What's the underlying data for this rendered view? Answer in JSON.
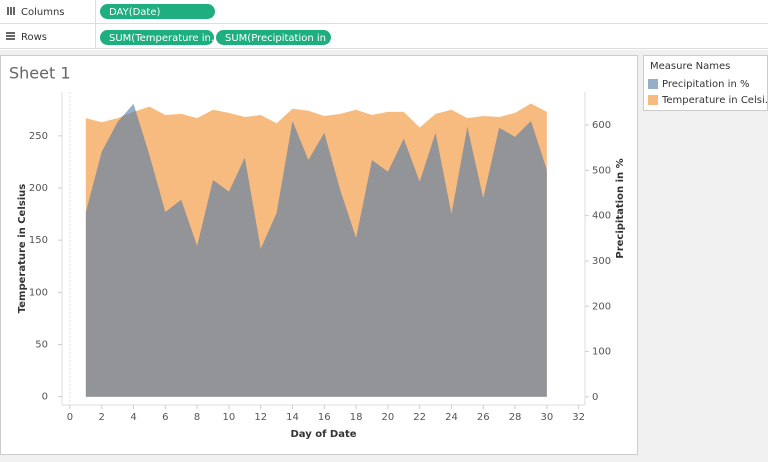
{
  "toolbar": {
    "columns_label": "Columns",
    "rows_label": "Rows",
    "columns_pills": [
      "DAY(Date)"
    ],
    "rows_pills": [
      "SUM(Temperature in..",
      "SUM(Precipitation in .."
    ]
  },
  "sheet_title": "Sheet 1",
  "legend": {
    "title": "Measure Names"
  },
  "chart_data": {
    "type": "area",
    "x_label": "Day of Date",
    "y_label": "Temperature in Celsius",
    "y2_label": "Precipitation in %",
    "x": [
      1,
      2,
      3,
      4,
      5,
      6,
      7,
      8,
      9,
      10,
      11,
      12,
      13,
      14,
      15,
      16,
      17,
      18,
      19,
      20,
      21,
      22,
      23,
      24,
      25,
      26,
      27,
      28,
      29,
      30
    ],
    "xlim": [
      -0.5,
      32.4
    ],
    "xticks": [
      0,
      2,
      4,
      6,
      8,
      10,
      12,
      14,
      16,
      18,
      20,
      22,
      24,
      26,
      28,
      30,
      32
    ],
    "ylim": [
      -8,
      292
    ],
    "yticks": [
      0,
      50,
      100,
      150,
      200,
      250
    ],
    "y2lim": [
      -18,
      673
    ],
    "y2ticks": [
      0,
      100,
      200,
      300,
      400,
      500,
      600
    ],
    "series": [
      {
        "name": "Precipitation in %",
        "color": "#4e79a7",
        "axis": "y2",
        "values": [
          408,
          541,
          607,
          647,
          534,
          408,
          435,
          333,
          479,
          453,
          528,
          327,
          406,
          609,
          523,
          583,
          457,
          351,
          523,
          497,
          570,
          475,
          583,
          404,
          596,
          439,
          594,
          574,
          609,
          501
        ]
      },
      {
        "name": "Temperature in Celsi..",
        "color": "#f28e2b",
        "values": [
          267,
          263,
          267,
          273,
          278,
          270,
          271,
          267,
          275,
          272,
          268,
          270,
          262,
          276,
          274,
          269,
          271,
          275,
          270,
          273,
          273,
          258,
          271,
          275,
          267,
          269,
          268,
          272,
          281,
          273
        ]
      }
    ]
  }
}
